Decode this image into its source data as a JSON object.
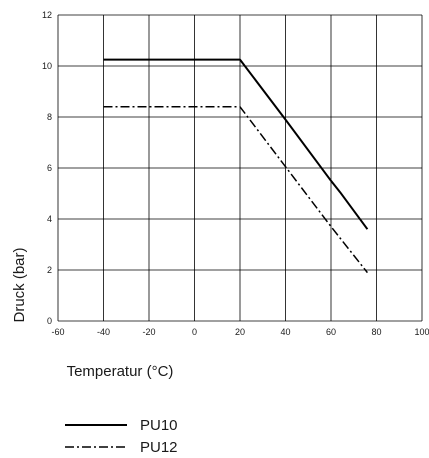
{
  "chart_data": {
    "type": "line",
    "xlabel": "Temperatur (°C)",
    "ylabel": "Druck (bar)",
    "xlim": [
      -60,
      100
    ],
    "ylim": [
      0,
      12
    ],
    "x_ticks": [
      -60,
      -40,
      -20,
      0,
      20,
      40,
      60,
      80,
      100
    ],
    "y_ticks": [
      0,
      2,
      4,
      6,
      8,
      10,
      12
    ],
    "grid": true,
    "legend_position": "bottom-left",
    "series": [
      {
        "name": "PU10",
        "line_style": "solid",
        "color": "#000000",
        "points": [
          [
            -40,
            10.25
          ],
          [
            20,
            10.25
          ],
          [
            40,
            7.9
          ],
          [
            60,
            5.5
          ],
          [
            64,
            5.05
          ],
          [
            76,
            3.6
          ]
        ]
      },
      {
        "name": "PU12",
        "line_style": "dash-dot",
        "color": "#000000",
        "points": [
          [
            -40,
            8.4
          ],
          [
            20,
            8.4
          ],
          [
            40,
            6.05
          ],
          [
            60,
            3.7
          ],
          [
            76,
            1.9
          ]
        ]
      }
    ]
  }
}
